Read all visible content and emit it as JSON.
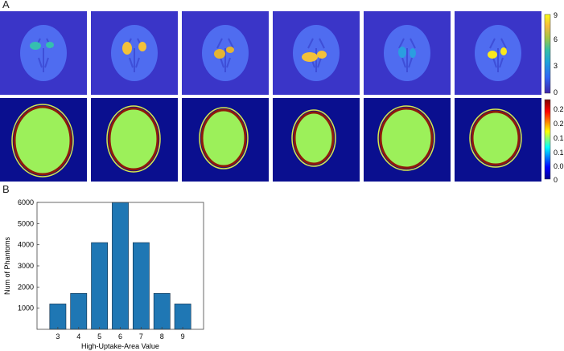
{
  "panel_a": {
    "label": "A",
    "uptake_colorbar": {
      "ticks": [
        "9",
        "6",
        "3",
        "0"
      ],
      "range": [
        0,
        9
      ]
    },
    "mu_colorbar": {
      "ticks": [
        "0.25",
        "0.2",
        "0.15",
        "0.1",
        "0.05",
        "0"
      ],
      "range": [
        0,
        0.27
      ]
    }
  },
  "panel_b": {
    "label": "B"
  },
  "chart_data": {
    "type": "bar",
    "categories": [
      "3",
      "4",
      "5",
      "6",
      "7",
      "8",
      "9"
    ],
    "values": [
      1200,
      1700,
      4100,
      6000,
      4100,
      1700,
      1200
    ],
    "xlabel": "High-Uptake-Area Value",
    "ylabel": "Num of Phantoms",
    "ylim": [
      0,
      6000
    ],
    "yticks": [
      "1000",
      "2000",
      "3000",
      "4000",
      "5000",
      "6000"
    ],
    "bar_color": "#1f77b4"
  },
  "colors": {
    "uptake_background": "#3a35c8",
    "uptake_body": "#4f6cf0",
    "mu_background": "#0a0f8f",
    "mu_body": "#9cf05a",
    "mu_rim": "#8e1a0c"
  }
}
